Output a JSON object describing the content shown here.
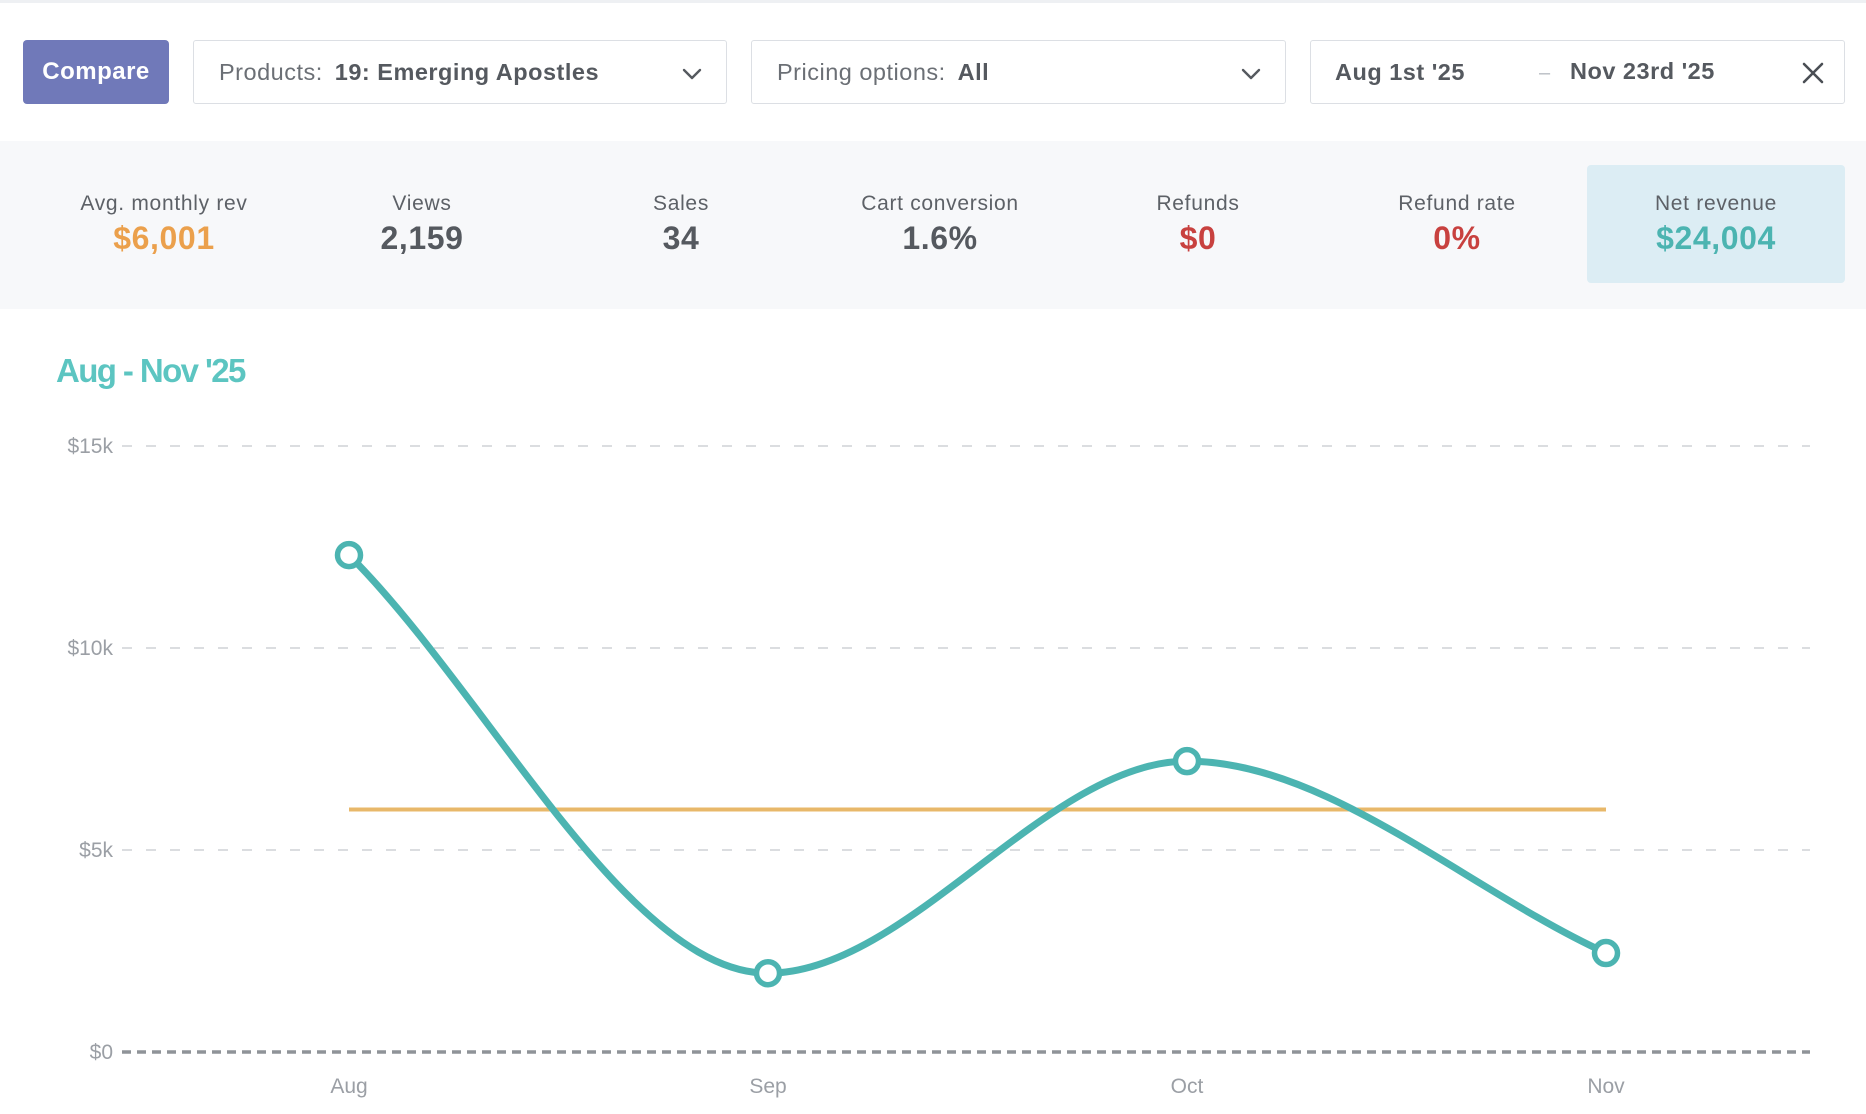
{
  "toolbar": {
    "compare_label": "Compare",
    "products": {
      "label": "Products:",
      "value": "19: Emerging Apostles"
    },
    "pricing": {
      "label": "Pricing options:",
      "value": "All"
    },
    "date_range": {
      "start": "Aug 1st '25",
      "separator": "–",
      "end": "Nov 23rd '25"
    }
  },
  "stats": [
    {
      "label": "Avg. monthly rev",
      "value": "$6,001",
      "color": "#eba04c"
    },
    {
      "label": "Views",
      "value": "2,159",
      "color": "#55595f"
    },
    {
      "label": "Sales",
      "value": "34",
      "color": "#55595f"
    },
    {
      "label": "Cart conversion",
      "value": "1.6%",
      "color": "#55595f"
    },
    {
      "label": "Refunds",
      "value": "$0",
      "color": "#c8413f"
    },
    {
      "label": "Refund rate",
      "value": "0%",
      "color": "#c8413f"
    },
    {
      "label": "Net revenue",
      "value": "$24,004",
      "color": "#4cb4b1",
      "highlighted": true
    }
  ],
  "chart_data": {
    "type": "line",
    "title": "Aug - Nov '25",
    "categories": [
      "Aug",
      "Sep",
      "Oct",
      "Nov"
    ],
    "series": [
      {
        "name": "Net revenue",
        "values": [
          12300,
          1950,
          7200,
          2450
        ],
        "color": "#4cb4b1"
      },
      {
        "name": "Avg. monthly rev",
        "values": [
          6001,
          6001,
          6001,
          6001
        ],
        "color": "#e8b86a"
      }
    ],
    "y_ticks": [
      0,
      5000,
      10000,
      15000
    ],
    "y_tick_labels": [
      "$0",
      "$5k",
      "$10k",
      "$15k"
    ],
    "ylim": [
      0,
      15000
    ],
    "grid": true,
    "xlabel": "",
    "ylabel": ""
  },
  "colors": {
    "accent": "#7079b9",
    "teal": "#4cb4b1",
    "orange": "#eba04c",
    "red": "#c8413f"
  }
}
